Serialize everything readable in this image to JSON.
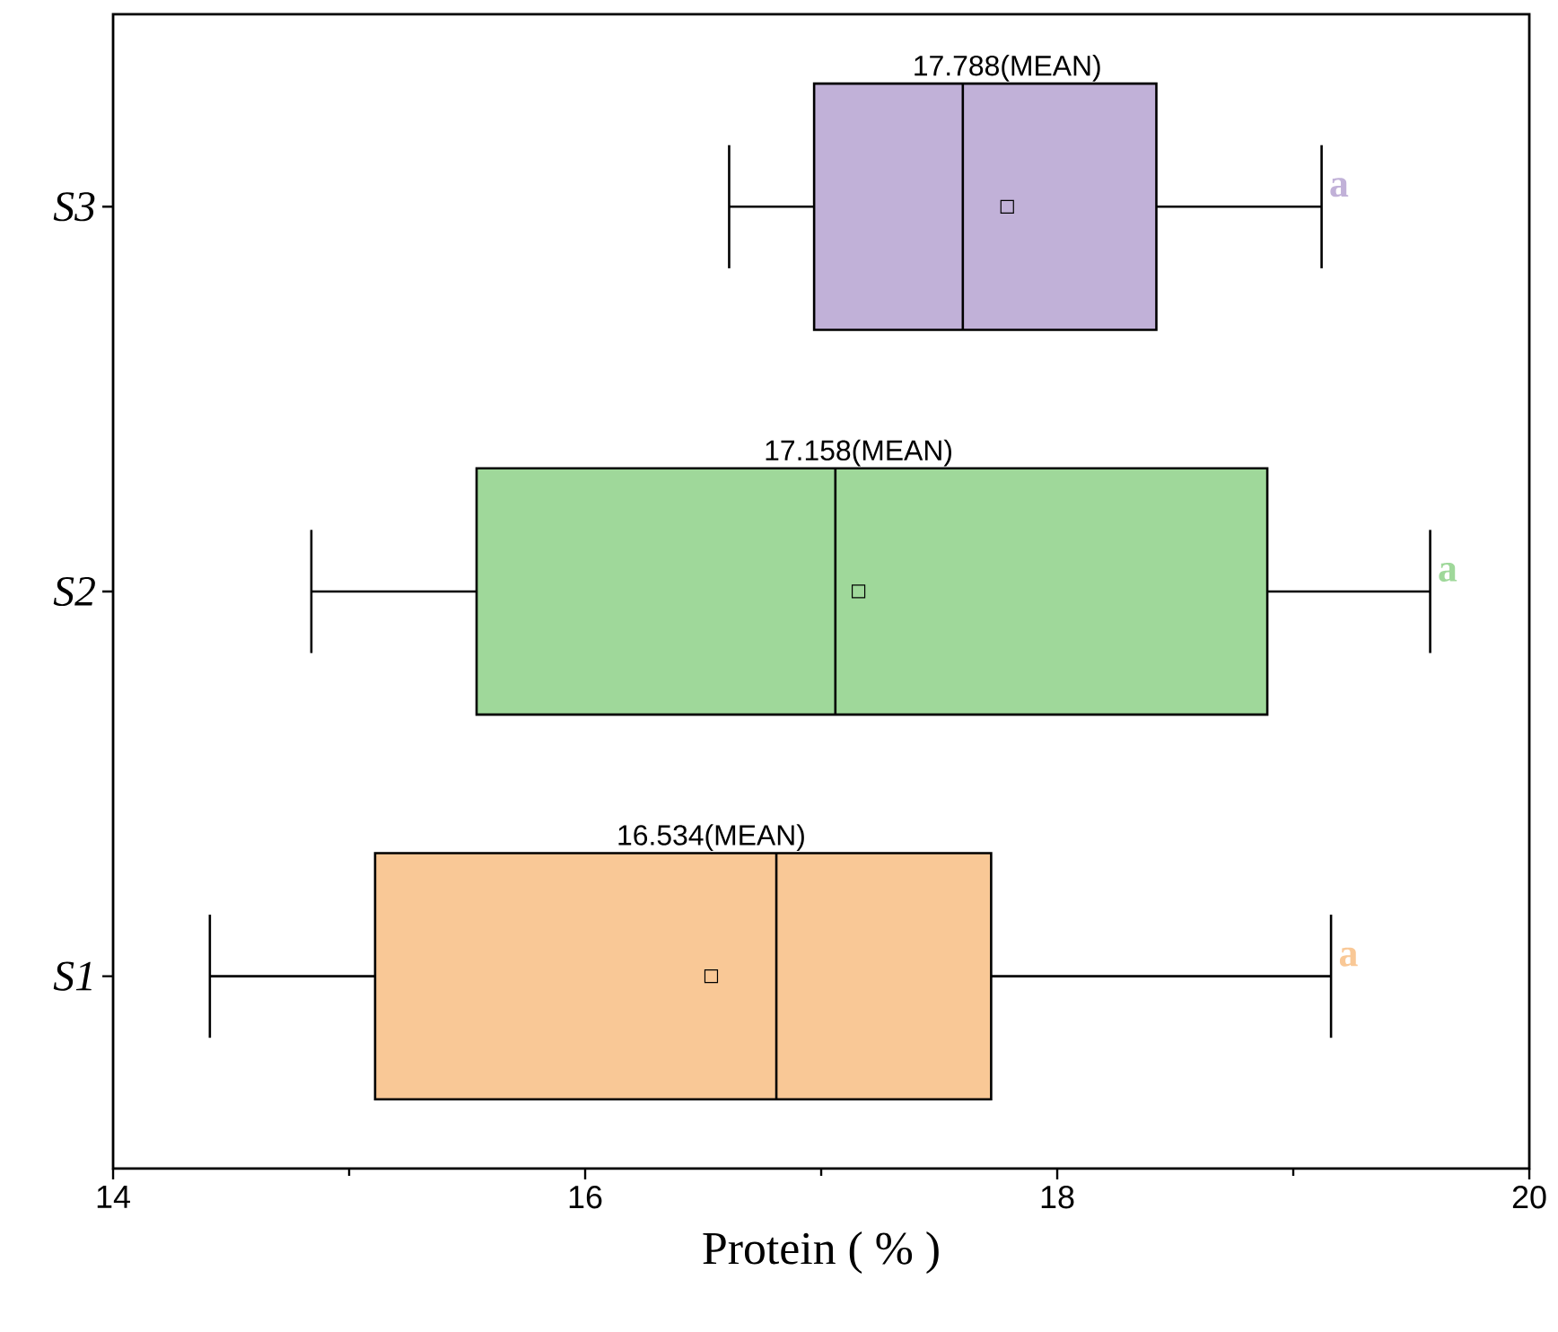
{
  "chart_data": {
    "type": "box",
    "orientation": "horizontal",
    "categories": [
      "S3",
      "S2",
      "S1"
    ],
    "xlabel": "Protein ( % )",
    "xlim": [
      14,
      20
    ],
    "xticks": [
      14,
      16,
      18,
      20
    ],
    "marker": "square",
    "colors": [
      "#c1b1d8",
      "#9fd89a",
      "#f9c896"
    ],
    "boxes": [
      {
        "low": 16.61,
        "q1": 16.97,
        "median": 17.6,
        "q3": 18.42,
        "high": 19.12,
        "mean": 17.788
      },
      {
        "low": 14.84,
        "q1": 15.54,
        "median": 17.06,
        "q3": 18.89,
        "high": 19.58,
        "mean": 17.158
      },
      {
        "low": 14.41,
        "q1": 15.11,
        "median": 16.81,
        "q3": 17.72,
        "high": 19.16,
        "mean": 16.534
      }
    ],
    "annotations": [
      "17.788(MEAN)",
      "17.158(MEAN)",
      "16.534(MEAN)",
      "a",
      "a",
      "a"
    ]
  }
}
